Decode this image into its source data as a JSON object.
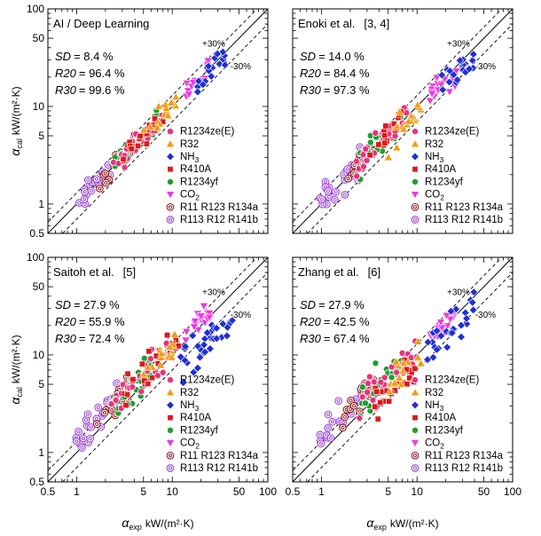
{
  "figure": {
    "x_axis_symbol": "α",
    "x_axis_subscript": "exp",
    "x_axis_units": "kW/(m²·K)",
    "y_axis_symbol": "α",
    "y_axis_subscript": "cal",
    "y_axis_units": "kW/(m²·K)",
    "band_plus_label": "+30%",
    "band_minus_label": "-30%",
    "colors": {
      "R1234ze(E)": "#e8337a",
      "R32": "#f39c12",
      "NH3": "#1f2fd6",
      "R410A": "#dd1a1a",
      "R1234yf": "#1e9e2e",
      "CO2": "#e83be0",
      "R11 R123 R134a": "#8b1a1a",
      "R113 R12 R141b": "#9a45d8"
    }
  },
  "chart_data": [
    {
      "type": "scatter",
      "title": "AI / Deep Learning",
      "ref": "",
      "xscale": "log",
      "yscale": "log",
      "xlim": [
        0.5,
        100
      ],
      "ylim": [
        0.5,
        100
      ],
      "xticks": [
        "0.5",
        "1",
        "5",
        "10",
        "50",
        "100"
      ],
      "yticks": [
        "0.5",
        "1",
        "5",
        "10",
        "50",
        "100"
      ],
      "stats": [
        {
          "name": "SD",
          "value": "= 8.4 %"
        },
        {
          "name": "R20",
          "value": "= 96.4 %"
        },
        {
          "name": "R30",
          "value": "= 99.6 %"
        }
      ],
      "legend": {
        "placement": "lower-right",
        "entries": [
          {
            "series": "R1234ze(E)",
            "label": "R1234ze(E)",
            "sub": "",
            "tail": "",
            "marker": "circle"
          },
          {
            "series": "R32",
            "label": "R32",
            "sub": "",
            "tail": "",
            "marker": "triangle"
          },
          {
            "series": "NH3",
            "label": "NH",
            "sub": "3",
            "tail": "",
            "marker": "diamond"
          },
          {
            "series": "R410A",
            "label": "R410A",
            "sub": "",
            "tail": "",
            "marker": "square"
          },
          {
            "series": "R1234yf",
            "label": "R1234yf",
            "sub": "",
            "tail": "",
            "marker": "circle"
          },
          {
            "series": "CO2",
            "label": "CO",
            "sub": "2",
            "tail": "",
            "marker": "tri-down"
          },
          {
            "series": "R11 R123 R134a",
            "label": "R11 R123 R134a",
            "sub": "",
            "tail": "",
            "marker": "ring"
          },
          {
            "series": "R113 R12 R141b",
            "label": "R113 R12 R141b",
            "sub": "",
            "tail": "",
            "marker": "ring"
          }
        ]
      },
      "series": [
        {
          "name": "R113 R12 R141b",
          "marker": "ring",
          "x0": 0.95,
          "x1": 2.6,
          "k": 1.0,
          "spread": 0.1,
          "n": 26
        },
        {
          "name": "R11 R123 R134a",
          "marker": "ring",
          "x0": 1.6,
          "x1": 3.8,
          "k": 1.0,
          "spread": 0.1,
          "n": 14
        },
        {
          "name": "R1234yf",
          "marker": "circle",
          "x0": 2.4,
          "x1": 7.0,
          "k": 1.0,
          "spread": 0.1,
          "n": 26
        },
        {
          "name": "R1234ze(E)",
          "marker": "circle",
          "x0": 2.3,
          "x1": 8.0,
          "k": 1.0,
          "spread": 0.1,
          "n": 30
        },
        {
          "name": "R410A",
          "marker": "square",
          "x0": 3.0,
          "x1": 8.0,
          "k": 1.0,
          "spread": 0.1,
          "n": 18
        },
        {
          "name": "R32",
          "marker": "triangle",
          "x0": 5.0,
          "x1": 11.0,
          "k": 1.0,
          "spread": 0.11,
          "n": 16
        },
        {
          "name": "CO2",
          "marker": "tri-down",
          "x0": 14.0,
          "x1": 25.0,
          "k": 1.0,
          "spread": 0.1,
          "n": 18
        },
        {
          "name": "NH3",
          "marker": "diamond",
          "x0": 18.0,
          "x1": 38.0,
          "k": 1.0,
          "spread": 0.1,
          "n": 20
        }
      ]
    },
    {
      "type": "scatter",
      "title": "Enoki et al.",
      "ref": "[3, 4]",
      "xscale": "log",
      "yscale": "log",
      "xlim": [
        0.5,
        100
      ],
      "ylim": [
        0.5,
        100
      ],
      "xticks": [
        "0.5",
        "1",
        "5",
        "10",
        "50",
        "100"
      ],
      "yticks": [
        "0.5",
        "1",
        "5",
        "10",
        "50",
        "100"
      ],
      "stats": [
        {
          "name": "SD",
          "value": "= 14.0 %"
        },
        {
          "name": "R20",
          "value": "= 84.4 %"
        },
        {
          "name": "R30",
          "value": "= 97.3 %"
        }
      ],
      "legend": {
        "placement": "lower-right",
        "entries": [
          {
            "series": "R1234ze(E)",
            "label": "R1234ze(E)",
            "sub": "",
            "tail": "",
            "marker": "circle"
          },
          {
            "series": "R32",
            "label": "R32",
            "sub": "",
            "tail": "",
            "marker": "triangle"
          },
          {
            "series": "NH3",
            "label": "NH",
            "sub": "3",
            "tail": "",
            "marker": "diamond"
          },
          {
            "series": "R410A",
            "label": "R410A",
            "sub": "",
            "tail": "",
            "marker": "square"
          },
          {
            "series": "R1234yf",
            "label": "R1234yf",
            "sub": "",
            "tail": "",
            "marker": "circle"
          },
          {
            "series": "CO2",
            "label": "CO",
            "sub": "2",
            "tail": "",
            "marker": "tri-down"
          },
          {
            "series": "R11 R123 R134a",
            "label": "R11 R123 R134a",
            "sub": "",
            "tail": "",
            "marker": "ring"
          },
          {
            "series": "R113 R12 R141b",
            "label": "R113 R12 R141b",
            "sub": "",
            "tail": "",
            "marker": "ring"
          }
        ]
      },
      "series": [
        {
          "name": "R113 R12 R141b",
          "marker": "ring",
          "x0": 0.95,
          "x1": 2.6,
          "k": 1.05,
          "spread": 0.14,
          "n": 26
        },
        {
          "name": "R11 R123 R134a",
          "marker": "ring",
          "x0": 1.6,
          "x1": 3.8,
          "k": 1.05,
          "spread": 0.14,
          "n": 14
        },
        {
          "name": "R1234yf",
          "marker": "circle",
          "x0": 2.4,
          "x1": 7.0,
          "k": 1.05,
          "spread": 0.14,
          "n": 26
        },
        {
          "name": "R1234ze(E)",
          "marker": "circle",
          "x0": 2.3,
          "x1": 8.0,
          "k": 1.08,
          "spread": 0.14,
          "n": 30
        },
        {
          "name": "R410A",
          "marker": "square",
          "x0": 3.0,
          "x1": 8.0,
          "k": 1.05,
          "spread": 0.14,
          "n": 18
        },
        {
          "name": "R32",
          "marker": "triangle",
          "x0": 5.0,
          "x1": 11.0,
          "k": 0.85,
          "spread": 0.13,
          "n": 16
        },
        {
          "name": "CO2",
          "marker": "tri-down",
          "x0": 13.0,
          "x1": 26.0,
          "k": 0.95,
          "spread": 0.12,
          "n": 18
        },
        {
          "name": "NH3",
          "marker": "diamond",
          "x0": 18.0,
          "x1": 40.0,
          "k": 0.85,
          "spread": 0.14,
          "n": 22
        }
      ]
    },
    {
      "type": "scatter",
      "title": "Saitoh et al.",
      "ref": "[5]",
      "xscale": "log",
      "yscale": "log",
      "xlim": [
        0.5,
        100
      ],
      "ylim": [
        0.5,
        100
      ],
      "xticks": [
        "0.5",
        "1",
        "5",
        "10",
        "50",
        "100"
      ],
      "yticks": [
        "0.5",
        "1",
        "5",
        "10",
        "50",
        "100"
      ],
      "stats": [
        {
          "name": "SD",
          "value": "= 27.9 %"
        },
        {
          "name": "R20",
          "value": "= 55.9 %"
        },
        {
          "name": "R30",
          "value": "= 72.4 %"
        }
      ],
      "legend": {
        "placement": "lower-right",
        "entries": [
          {
            "series": "R1234ze(E)",
            "label": "R1234ze(E)",
            "sub": "",
            "tail": "",
            "marker": "circle"
          },
          {
            "series": "R32",
            "label": "R32",
            "sub": "",
            "tail": "",
            "marker": "triangle"
          },
          {
            "series": "NH3",
            "label": "NH",
            "sub": "3",
            "tail": "",
            "marker": "diamond"
          },
          {
            "series": "R410A",
            "label": "R410A",
            "sub": "",
            "tail": "",
            "marker": "square"
          },
          {
            "series": "R1234yf",
            "label": "R1234yf",
            "sub": "",
            "tail": "",
            "marker": "circle"
          },
          {
            "series": "CO2",
            "label": "CO",
            "sub": "2",
            "tail": "",
            "marker": "tri-down"
          },
          {
            "series": "R11 R123 R134a",
            "label": "R11 R123 R134a",
            "sub": "",
            "tail": "",
            "marker": "ring"
          },
          {
            "series": "R113 R12 R141b",
            "label": "R113 R12 R141b",
            "sub": "",
            "tail": "",
            "marker": "ring"
          }
        ]
      },
      "series": [
        {
          "name": "R113 R12 R141b",
          "marker": "ring",
          "x0": 0.95,
          "x1": 2.8,
          "k": 1.35,
          "spread": 0.16,
          "n": 26
        },
        {
          "name": "R11 R123 R134a",
          "marker": "ring",
          "x0": 1.6,
          "x1": 3.8,
          "k": 1.3,
          "spread": 0.16,
          "n": 14
        },
        {
          "name": "R1234yf",
          "marker": "circle",
          "x0": 2.4,
          "x1": 7.0,
          "k": 1.25,
          "spread": 0.16,
          "n": 26
        },
        {
          "name": "R1234ze(E)",
          "marker": "circle",
          "x0": 2.3,
          "x1": 9.0,
          "k": 1.25,
          "spread": 0.16,
          "n": 32
        },
        {
          "name": "R410A",
          "marker": "square",
          "x0": 3.0,
          "x1": 12.0,
          "k": 1.25,
          "spread": 0.15,
          "n": 24
        },
        {
          "name": "R32",
          "marker": "triangle",
          "x0": 5.0,
          "x1": 11.0,
          "k": 1.2,
          "spread": 0.14,
          "n": 14
        },
        {
          "name": "CO2",
          "marker": "tri-down",
          "x0": 12.0,
          "x1": 25.0,
          "k": 1.1,
          "spread": 0.1,
          "n": 18
        },
        {
          "name": "NH3",
          "marker": "diamond",
          "x0": 12.0,
          "x1": 45.0,
          "k": 0.55,
          "spread": 0.18,
          "n": 34
        }
      ]
    },
    {
      "type": "scatter",
      "title": "Zhang et al.",
      "ref": "[6]",
      "xscale": "log",
      "yscale": "log",
      "xlim": [
        0.5,
        100
      ],
      "ylim": [
        0.5,
        100
      ],
      "xticks": [
        "0.5",
        "1",
        "5",
        "10",
        "50",
        "100"
      ],
      "yticks": [
        "0.5",
        "1",
        "5",
        "10",
        "50",
        "100"
      ],
      "stats": [
        {
          "name": "SD",
          "value": "= 27.9 %"
        },
        {
          "name": "R20",
          "value": "= 42.5 %"
        },
        {
          "name": "R30",
          "value": "= 67.4 %"
        }
      ],
      "legend": {
        "placement": "lower-right",
        "entries": [
          {
            "series": "R1234ze(E)",
            "label": "R1234ze(E)",
            "sub": "",
            "tail": "",
            "marker": "circle"
          },
          {
            "series": "R32",
            "label": "R32",
            "sub": "",
            "tail": "",
            "marker": "triangle"
          },
          {
            "series": "NH3",
            "label": "NH",
            "sub": "3",
            "tail": "",
            "marker": "diamond"
          },
          {
            "series": "R410A",
            "label": "R410A",
            "sub": "",
            "tail": "",
            "marker": "square"
          },
          {
            "series": "R1234yf",
            "label": "R1234yf",
            "sub": "",
            "tail": "",
            "marker": "circle"
          },
          {
            "series": "CO2",
            "label": "CO",
            "sub": "2",
            "tail": "",
            "marker": "tri-down"
          },
          {
            "series": "R11 R123 R134a",
            "label": "R11 R123 R134a",
            "sub": "",
            "tail": "",
            "marker": "ring"
          },
          {
            "series": "R113 R12 R141b",
            "label": "R113 R12 R141b",
            "sub": "",
            "tail": "",
            "marker": "ring"
          }
        ]
      },
      "series": [
        {
          "name": "R113 R12 R141b",
          "marker": "ring",
          "x0": 0.95,
          "x1": 2.8,
          "k": 1.35,
          "spread": 0.16,
          "n": 26
        },
        {
          "name": "R11 R123 R134a",
          "marker": "ring",
          "x0": 1.6,
          "x1": 4.0,
          "k": 1.3,
          "spread": 0.16,
          "n": 14
        },
        {
          "name": "R1234yf",
          "marker": "circle",
          "x0": 2.4,
          "x1": 7.0,
          "k": 1.3,
          "spread": 0.17,
          "n": 26
        },
        {
          "name": "R1234ze(E)",
          "marker": "circle",
          "x0": 2.3,
          "x1": 10.0,
          "k": 1.2,
          "spread": 0.18,
          "n": 32
        },
        {
          "name": "R410A",
          "marker": "square",
          "x0": 3.0,
          "x1": 10.0,
          "k": 0.85,
          "spread": 0.18,
          "n": 22
        },
        {
          "name": "R32",
          "marker": "triangle",
          "x0": 5.0,
          "x1": 11.0,
          "k": 0.95,
          "spread": 0.14,
          "n": 14
        },
        {
          "name": "CO2",
          "marker": "tri-down",
          "x0": 14.0,
          "x1": 25.0,
          "k": 1.05,
          "spread": 0.1,
          "n": 18
        },
        {
          "name": "NH3",
          "marker": "diamond",
          "x0": 12.0,
          "x1": 40.0,
          "k": 0.8,
          "spread": 0.14,
          "n": 26
        }
      ]
    }
  ]
}
